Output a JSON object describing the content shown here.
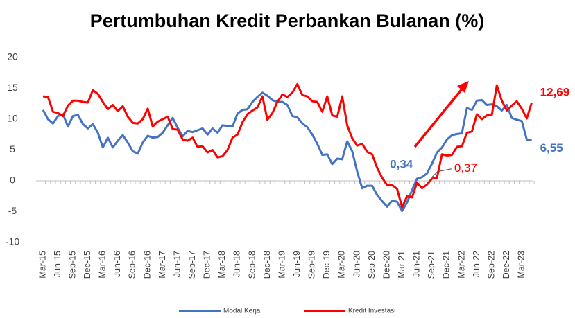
{
  "chart_data": {
    "type": "line",
    "title": "Pertumbuhan Kredit Perbankan Bulanan (%)",
    "categories": [
      "Mar-15",
      null,
      null,
      "Jun-15",
      null,
      null,
      "Sep-15",
      null,
      null,
      "Dec-15",
      null,
      null,
      "Mar-16",
      null,
      null,
      "Jun-16",
      null,
      null,
      "Sep-16",
      null,
      null,
      "Dec-16",
      null,
      null,
      "Mar-17",
      null,
      null,
      "Jun-17",
      null,
      null,
      "Sep-17",
      null,
      null,
      "Dec-17",
      null,
      null,
      "Mar-18",
      null,
      null,
      "Jun-18",
      null,
      null,
      "Sep-18",
      null,
      null,
      "Dec-18",
      null,
      null,
      "Mar-19",
      null,
      null,
      "Jun-19",
      null,
      null,
      "Sep-19",
      null,
      null,
      "Dec-19",
      null,
      null,
      "Mar-20",
      null,
      null,
      "Jun-20",
      null,
      null,
      "Sep-20",
      null,
      null,
      "Dec-20",
      null,
      null,
      "Mar-21",
      null,
      null,
      "Jun-21",
      null,
      null,
      "Sep-21",
      null,
      null,
      "Dec-21",
      null,
      null,
      "Mar-22",
      null,
      null,
      "Jun-22",
      null,
      null,
      "Sep-22",
      null,
      null,
      "Dec-22",
      null,
      null,
      "Mar-23",
      null,
      null
    ],
    "series": [
      {
        "name": "Modal Kerja",
        "color": "#4472c4",
        "values": [
          11.5,
          10,
          9.3,
          10.5,
          10.8,
          8.8,
          10.5,
          10.7,
          9.2,
          8.5,
          9.2,
          7.8,
          5.4,
          7,
          5.4,
          6.5,
          7.4,
          6.2,
          4.8,
          4.4,
          6.2,
          7.3,
          7,
          7.1,
          7.8,
          9,
          10.2,
          8.6,
          7.2,
          8.1,
          7.9,
          8.2,
          8.5,
          7.5,
          8.5,
          7.8,
          9,
          8.9,
          8.8,
          10.9,
          11.5,
          11.6,
          12.8,
          13.6,
          14.3,
          13.8,
          13.1,
          12.8,
          12.8,
          12.3,
          10.5,
          10.3,
          9.3,
          8.7,
          7.5,
          6,
          4.2,
          4.3,
          2.7,
          3.6,
          3.5,
          6.4,
          4.8,
          1.5,
          -1.2,
          -0.8,
          -0.8,
          -2.3,
          -3.3,
          -4.2,
          -3.2,
          -3.4,
          -4.9,
          -3.5,
          -1.5,
          0.34,
          0.6,
          1.2,
          2.8,
          4.6,
          5.4,
          6.7,
          7.4,
          7.6,
          7.7,
          11.8,
          11.5,
          13,
          13.1,
          12.3,
          12.4,
          12.1,
          11.4,
          12.3,
          10.2,
          9.9,
          9.7,
          6.7,
          6.55
        ],
        "value_labels": [
          null,
          null,
          null,
          null,
          null,
          null,
          null,
          null,
          null,
          null,
          null,
          null,
          null,
          null,
          null,
          null,
          null,
          null,
          null,
          null,
          null,
          null,
          null,
          null,
          null,
          null,
          null,
          null,
          null,
          null,
          null,
          null,
          null,
          null,
          null,
          null,
          null,
          null,
          null,
          null,
          null,
          null,
          null,
          null,
          null,
          null,
          null,
          null,
          null,
          null,
          null,
          null,
          null,
          null,
          null,
          null,
          null,
          null,
          null,
          null,
          null,
          null,
          null,
          null,
          null,
          null,
          null,
          null,
          null,
          null,
          null,
          null,
          null,
          null,
          null,
          "0,34",
          null,
          null,
          null,
          null,
          null,
          null,
          null,
          null,
          null,
          null,
          null,
          null,
          null,
          null,
          null,
          null,
          null,
          null,
          null,
          null,
          null,
          null,
          "6,55"
        ]
      },
      {
        "name": "Kredit Investasi",
        "color": "#ff0000",
        "values": [
          13.7,
          13.6,
          11.2,
          11,
          10.5,
          12.2,
          13,
          13,
          12.8,
          12.7,
          14.7,
          14.1,
          12.8,
          11.6,
          12.3,
          11.3,
          12.1,
          10.4,
          9.4,
          9.3,
          10,
          11.7,
          8.8,
          9.6,
          10,
          10.4,
          8.4,
          8.3,
          6.7,
          6.5,
          7,
          5.5,
          5.6,
          4.6,
          5,
          3.8,
          4,
          5,
          7,
          7.5,
          9.5,
          10.8,
          11.4,
          11.9,
          13.7,
          9.9,
          11,
          12.8,
          14,
          13.6,
          14.3,
          15.7,
          13.9,
          13.7,
          12.9,
          12.8,
          11.2,
          13.7,
          10.6,
          10.4,
          13.7,
          9,
          6.9,
          5.7,
          6,
          4.7,
          4.3,
          2.1,
          0.5,
          -0.7,
          -0.7,
          -1.3,
          -4.3,
          -2.5,
          -2.7,
          -0.3,
          -1.2,
          -0.6,
          0.37,
          0.5,
          4.3,
          4.1,
          4.2,
          5.5,
          5.6,
          7.8,
          8,
          10.8,
          10,
          10.6,
          10.7,
          15.5,
          13,
          11.4,
          12.2,
          12.9,
          11.7,
          10.1,
          12.69
        ],
        "value_labels": [
          null,
          null,
          null,
          null,
          null,
          null,
          null,
          null,
          null,
          null,
          null,
          null,
          null,
          null,
          null,
          null,
          null,
          null,
          null,
          null,
          null,
          null,
          null,
          null,
          null,
          null,
          null,
          null,
          null,
          null,
          null,
          null,
          null,
          null,
          null,
          null,
          null,
          null,
          null,
          null,
          null,
          null,
          null,
          null,
          null,
          null,
          null,
          null,
          null,
          null,
          null,
          null,
          null,
          null,
          null,
          null,
          null,
          null,
          null,
          null,
          null,
          null,
          null,
          null,
          null,
          null,
          null,
          null,
          null,
          null,
          null,
          null,
          null,
          null,
          null,
          null,
          null,
          null,
          "0,37",
          null,
          null,
          null,
          null,
          null,
          null,
          null,
          null,
          null,
          null,
          null,
          null,
          null,
          null,
          null,
          null,
          null,
          null,
          null,
          "12,69"
        ]
      }
    ],
    "ylim": [
      -10,
      20
    ],
    "yticks": [
      -10,
      -5,
      0,
      5,
      10,
      15,
      20
    ],
    "legend": "bottom"
  }
}
